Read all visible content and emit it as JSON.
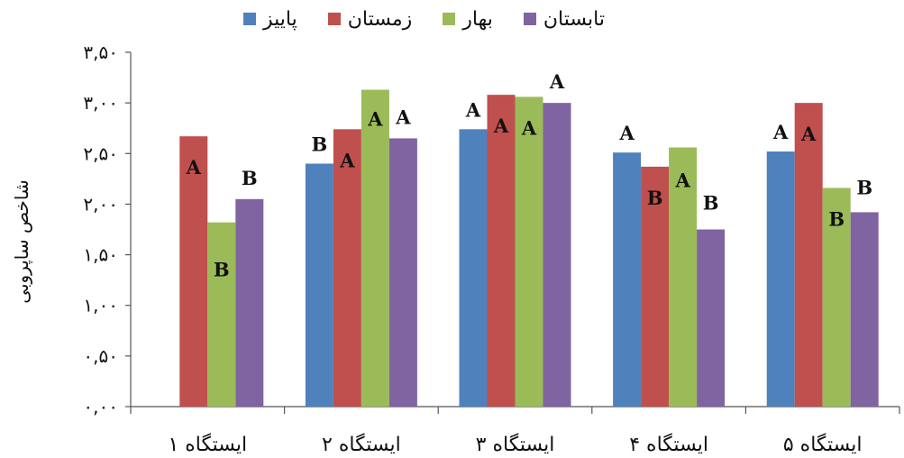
{
  "chart_data": {
    "type": "bar",
    "title": "",
    "xlabel": "",
    "ylabel": "شاخص ساپروبی",
    "ylim": [
      0,
      3.5
    ],
    "y_ticks": [
      0,
      0.5,
      1,
      1.5,
      2,
      2.5,
      3,
      3.5
    ],
    "y_tick_labels": [
      "۰,۰۰",
      "۰,۵۰",
      "۱,۰۰",
      "۱,۵۰",
      "۲,۰۰",
      "۲,۵۰",
      "۳,۰۰",
      "۳,۵۰"
    ],
    "categories": [
      "ایستگاه ۱",
      "ایستگاه ۲",
      "ایستگاه ۳",
      "ایستگاه ۴",
      "ایستگاه ۵"
    ],
    "legend_position": "top",
    "grid": false,
    "series": [
      {
        "name": "پاییز",
        "color": "#4f81bd",
        "values": [
          null,
          2.4,
          2.74,
          2.51,
          2.52
        ],
        "labels": [
          "",
          "B",
          "A",
          "A",
          "A"
        ]
      },
      {
        "name": "زمستان",
        "color": "#c0504d",
        "values": [
          2.67,
          2.74,
          3.08,
          2.37,
          3.0
        ],
        "labels": [
          "A",
          "A",
          "A",
          "B",
          "A"
        ]
      },
      {
        "name": "بهار",
        "color": "#9bbb59",
        "values": [
          1.82,
          3.13,
          3.06,
          2.56,
          2.16
        ],
        "labels": [
          "B",
          "A",
          "A",
          "A",
          "B"
        ]
      },
      {
        "name": "تابستان",
        "color": "#8064a2",
        "values": [
          2.05,
          2.65,
          3.0,
          1.75,
          1.92
        ],
        "labels": [
          "B",
          "A",
          "A",
          "B",
          "B"
        ]
      }
    ]
  }
}
